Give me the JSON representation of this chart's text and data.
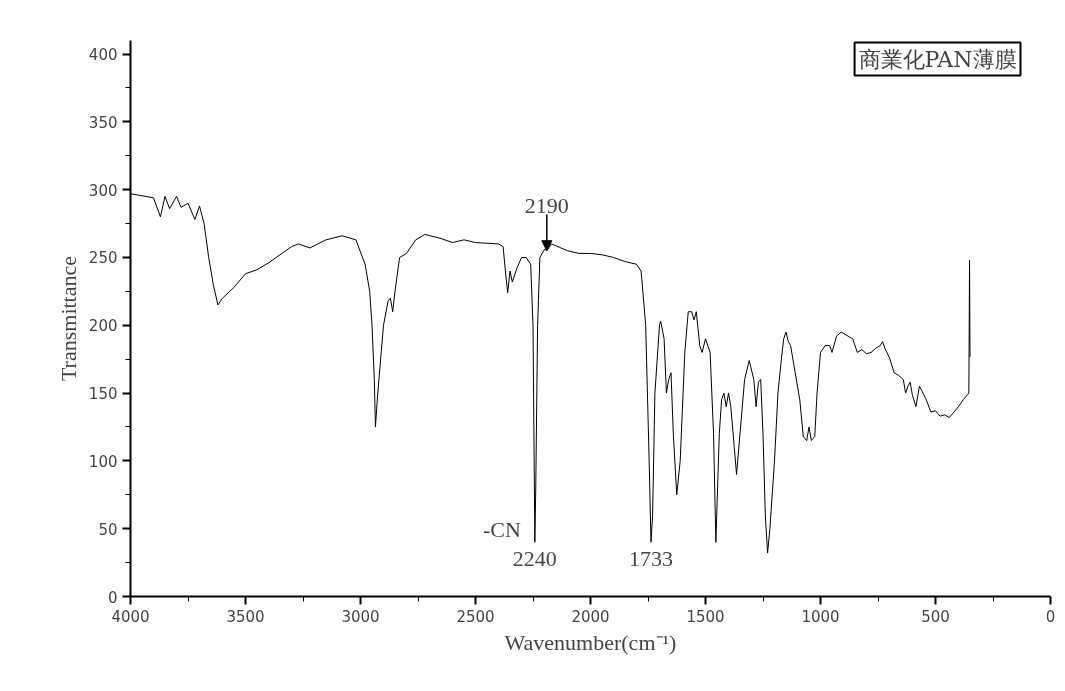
{
  "chart_data": {
    "type": "line",
    "title": "商業化PAN薄膜",
    "xlabel": "Wavenumber(cm⁻¹)",
    "ylabel": "Transmittance",
    "xlim": [
      4000,
      0
    ],
    "xticks": [
      4000,
      3500,
      3000,
      2500,
      2000,
      1500,
      1000,
      500,
      0
    ],
    "ylim": [
      0,
      410
    ],
    "yticks": [
      0,
      50,
      100,
      150,
      200,
      250,
      300,
      350,
      400
    ],
    "grid": false,
    "marker": "none",
    "line_style": "solid",
    "series": [
      {
        "color": "#000000",
        "x": [
          4000,
          3900,
          3870,
          3850,
          3830,
          3800,
          3780,
          3750,
          3720,
          3700,
          3680,
          3660,
          3640,
          3620,
          3600,
          3550,
          3500,
          3450,
          3400,
          3350,
          3300,
          3270,
          3220,
          3150,
          3080,
          3020,
          2980,
          2960,
          2950,
          2940,
          2935,
          2925,
          2900,
          2880,
          2870,
          2860,
          2850,
          2830,
          2800,
          2760,
          2720,
          2650,
          2600,
          2550,
          2500,
          2400,
          2380,
          2370,
          2360,
          2350,
          2340,
          2320,
          2300,
          2280,
          2260,
          2250,
          2245,
          2242,
          2238,
          2230,
          2220,
          2200,
          2190,
          2170,
          2100,
          2050,
          2000,
          1950,
          1900,
          1850,
          1800,
          1780,
          1760,
          1745,
          1737,
          1730,
          1720,
          1700,
          1695,
          1680,
          1670,
          1660,
          1650,
          1640,
          1625,
          1610,
          1590,
          1575,
          1560,
          1550,
          1540,
          1525,
          1515,
          1500,
          1480,
          1465,
          1455,
          1440,
          1430,
          1420,
          1410,
          1400,
          1390,
          1375,
          1365,
          1350,
          1330,
          1310,
          1290,
          1280,
          1270,
          1260,
          1250,
          1240,
          1230,
          1220,
          1200,
          1185,
          1170,
          1160,
          1150,
          1140,
          1130,
          1110,
          1090,
          1075,
          1060,
          1050,
          1040,
          1025,
          1015,
          1000,
          980,
          960,
          950,
          930,
          910,
          880,
          860,
          840,
          820,
          800,
          780,
          760,
          740,
          730,
          720,
          700,
          680,
          660,
          640,
          630,
          620,
          610,
          600,
          585,
          570,
          560,
          540,
          520,
          500,
          480,
          460,
          440,
          420,
          400,
          380,
          365,
          355,
          352,
          350
        ],
        "values": [
          297,
          294,
          280,
          295,
          286,
          295,
          287,
          290,
          278,
          288,
          275,
          250,
          230,
          215,
          220,
          228,
          238,
          241,
          246,
          252,
          258,
          260,
          257,
          263,
          266,
          263,
          245,
          225,
          200,
          160,
          125,
          150,
          200,
          218,
          220,
          210,
          225,
          250,
          253,
          263,
          267,
          264,
          261,
          263,
          261,
          260,
          258,
          240,
          224,
          240,
          232,
          242,
          250,
          250,
          245,
          200,
          100,
          40,
          80,
          200,
          250,
          256,
          255,
          260,
          255,
          253,
          253,
          252,
          250,
          247,
          245,
          240,
          200,
          100,
          40,
          60,
          150,
          200,
          203,
          190,
          150,
          160,
          165,
          120,
          75,
          100,
          180,
          210,
          210,
          204,
          210,
          185,
          180,
          190,
          180,
          120,
          40,
          120,
          145,
          150,
          140,
          150,
          140,
          110,
          90,
          120,
          160,
          174,
          160,
          140,
          158,
          160,
          120,
          60,
          32,
          50,
          100,
          150,
          175,
          190,
          195,
          188,
          185,
          165,
          145,
          118,
          115,
          125,
          115,
          118,
          150,
          180,
          185,
          185,
          180,
          192,
          195,
          192,
          190,
          180,
          182,
          179,
          180,
          183,
          185,
          188,
          183,
          176,
          165,
          163,
          160,
          150,
          155,
          158,
          148,
          140,
          155,
          152,
          145,
          136,
          137,
          133,
          134,
          132,
          136,
          140,
          145,
          148,
          150,
          248,
          177
        ]
      }
    ],
    "annotations": [
      {
        "text": "2190",
        "x": 2190,
        "y": 255
      },
      {
        "text": "-CN",
        "x": 2242,
        "y": 40
      },
      {
        "text": "2240",
        "x": 2242,
        "y": 40
      },
      {
        "text": "1733",
        "x": 1737,
        "y": 40
      }
    ]
  }
}
